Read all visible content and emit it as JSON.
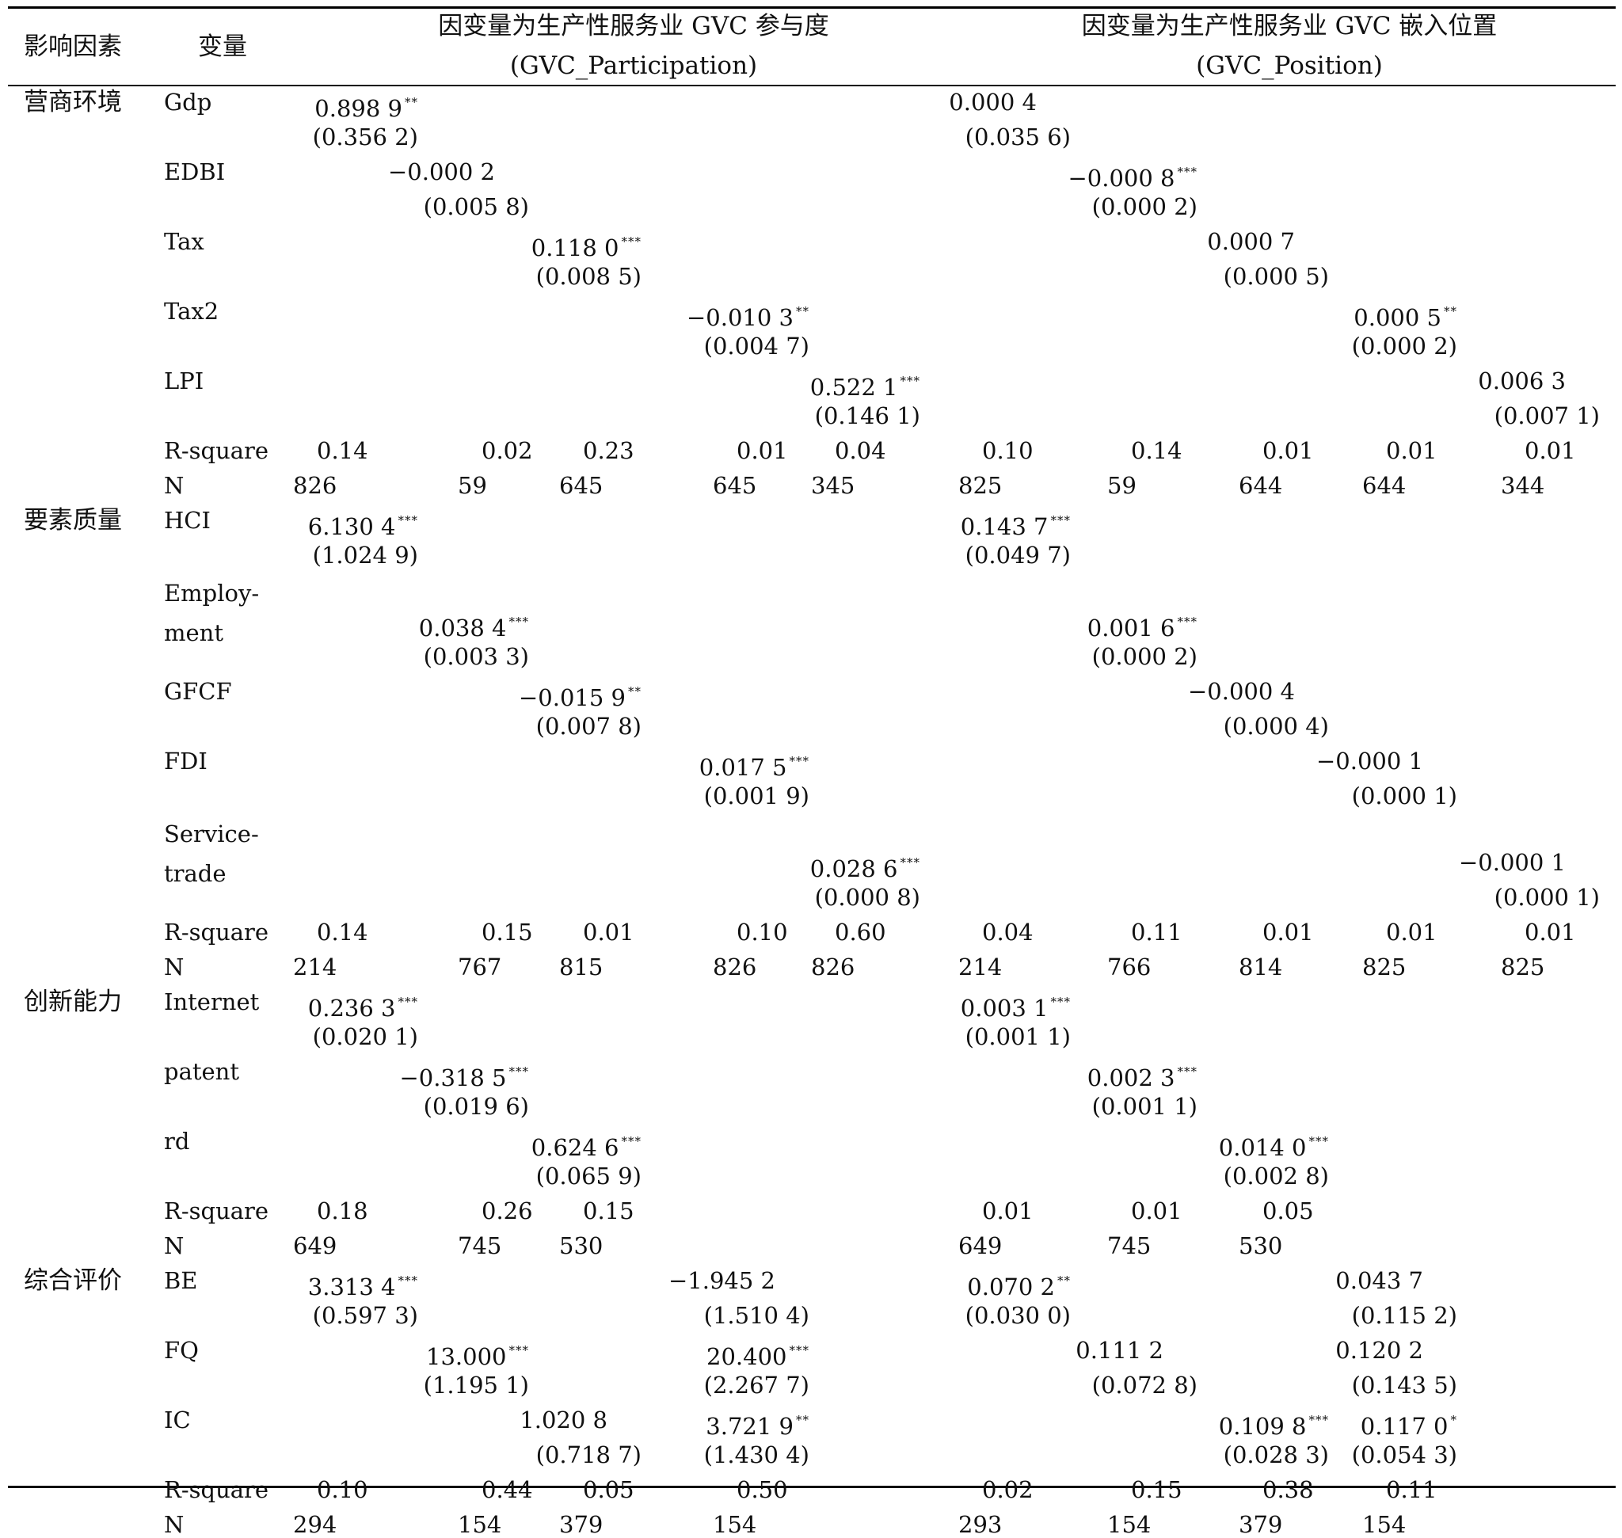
{
  "header": {
    "col_factor": "影响因素",
    "col_variable": "变量",
    "group1_line1": "因变量为生产性服务业 GVC 参与度",
    "group1_line2": "(GVC_Participation)",
    "group2_line1": "因变量为生产性服务业 GVC 嵌入位置",
    "group2_line2": "(GVC_Position)"
  },
  "sections": [
    {
      "factor": "营商环境",
      "rows": [
        {
          "var": "Gdp",
          "cells": [
            [
              1,
              "0.898 9",
              "**",
              "(0.356 2)"
            ],
            [
              6,
              "0.000 4",
              "",
              "(0.035 6)"
            ]
          ]
        },
        {
          "var": "EDBI",
          "cells": [
            [
              2,
              "−0.000 2",
              "",
              "(0.005 8)"
            ],
            [
              7,
              "−0.000 8",
              "***",
              "(0.000 2)"
            ]
          ]
        },
        {
          "var": "Tax",
          "cells": [
            [
              3,
              "0.118 0",
              "***",
              "(0.008 5)"
            ],
            [
              8,
              "0.000 7",
              "",
              "(0.000 5)"
            ]
          ]
        },
        {
          "var": "Tax2",
          "cells": [
            [
              4,
              "−0.010 3",
              "**",
              "(0.004 7)"
            ],
            [
              9,
              "0.000 5",
              "**",
              "(0.000 2)"
            ]
          ]
        },
        {
          "var": "LPI",
          "cells": [
            [
              5,
              "0.522 1",
              "***",
              "(0.146 1)"
            ],
            [
              10,
              "0.006 3",
              "",
              "(0.007 1)"
            ]
          ]
        }
      ],
      "rsquare": [
        "0.14",
        "0.02",
        "0.23",
        "0.01",
        "0.04",
        "0.10",
        "0.14",
        "0.01",
        "0.01",
        "0.01"
      ],
      "n": [
        "826",
        "59",
        "645",
        "645",
        "345",
        "825",
        "59",
        "644",
        "644",
        "344"
      ]
    },
    {
      "factor": "要素质量",
      "rows": [
        {
          "var": "HCI",
          "cells": [
            [
              1,
              "6.130 4",
              "***",
              "(1.024 9)"
            ],
            [
              6,
              "0.143 7",
              "***",
              "(0.049 7)"
            ]
          ]
        },
        {
          "var": "Employ-",
          "var2": "ment",
          "cells": [
            [
              2,
              "0.038 4",
              "***",
              "(0.003 3)"
            ],
            [
              7,
              "0.001 6",
              "***",
              "(0.000 2)"
            ]
          ]
        },
        {
          "var": "GFCF",
          "cells": [
            [
              3,
              "−0.015 9",
              "**",
              "(0.007 8)"
            ],
            [
              8,
              "−0.000 4",
              "",
              "(0.000 4)"
            ]
          ]
        },
        {
          "var": "FDI",
          "cells": [
            [
              4,
              "0.017 5",
              "***",
              "(0.001 9)"
            ],
            [
              9,
              "−0.000 1",
              "",
              "(0.000 1)"
            ]
          ]
        },
        {
          "var": "Service-",
          "var2": "trade",
          "cells": [
            [
              5,
              "0.028 6",
              "***",
              "(0.000 8)"
            ],
            [
              10,
              "−0.000 1",
              "",
              "(0.000 1)"
            ]
          ]
        }
      ],
      "rsquare": [
        "0.14",
        "0.15",
        "0.01",
        "0.10",
        "0.60",
        "0.04",
        "0.11",
        "0.01",
        "0.01",
        "0.01"
      ],
      "n": [
        "214",
        "767",
        "815",
        "826",
        "826",
        "214",
        "766",
        "814",
        "825",
        "825"
      ]
    },
    {
      "factor": "创新能力",
      "rows": [
        {
          "var": "Internet",
          "cells": [
            [
              1,
              "0.236 3",
              "***",
              "(0.020 1)"
            ],
            [
              6,
              "0.003 1",
              "***",
              "(0.001 1)"
            ]
          ]
        },
        {
          "var": "patent",
          "cells": [
            [
              2,
              "−0.318 5",
              "***",
              "(0.019 6)"
            ],
            [
              7,
              "0.002 3",
              "***",
              "(0.001 1)"
            ]
          ]
        },
        {
          "var": "rd",
          "cells": [
            [
              3,
              "0.624 6",
              "***",
              "(0.065 9)"
            ],
            [
              8,
              "0.014 0",
              "***",
              "(0.002 8)"
            ]
          ]
        }
      ],
      "rsquare": [
        "0.18",
        "0.26",
        "0.15",
        "",
        "",
        "0.01",
        "0.01",
        "0.05",
        "",
        ""
      ],
      "n": [
        "649",
        "745",
        "530",
        "",
        "",
        "649",
        "745",
        "530",
        "",
        ""
      ]
    },
    {
      "factor": "综合评价",
      "rows": [
        {
          "var": "BE",
          "cells": [
            [
              1,
              "3.313 4",
              "***",
              "(0.597 3)"
            ],
            [
              4,
              "−1.945 2",
              "",
              "(1.510 4)"
            ],
            [
              6,
              "0.070 2",
              "**",
              "(0.030 0)"
            ],
            [
              9,
              "0.043 7",
              "",
              "(0.115 2)"
            ]
          ]
        },
        {
          "var": "FQ",
          "cells": [
            [
              2,
              "13.000",
              "***",
              "(1.195 1)"
            ],
            [
              4,
              "20.400",
              "***",
              "(2.267 7)"
            ],
            [
              7,
              "0.111 2",
              "",
              "(0.072 8)"
            ],
            [
              9,
              "0.120 2",
              "",
              "(0.143 5)"
            ]
          ]
        },
        {
          "var": "IC",
          "cells": [
            [
              3,
              "1.020 8",
              "",
              "(0.718 7)"
            ],
            [
              4,
              "3.721 9",
              "**",
              "(1.430 4)"
            ],
            [
              8,
              "0.109 8",
              "***",
              "(0.028 3)"
            ],
            [
              9,
              "0.117 0",
              "*",
              "(0.054 3)"
            ]
          ]
        }
      ],
      "rsquare": [
        "0.10",
        "0.44",
        "0.05",
        "0.50",
        "",
        "0.02",
        "0.15",
        "0.38",
        "0.11",
        ""
      ],
      "n": [
        "294",
        "154",
        "379",
        "154",
        "",
        "293",
        "154",
        "379",
        "154",
        ""
      ]
    }
  ],
  "labels": {
    "rsquare": "R-square",
    "n": "N"
  }
}
